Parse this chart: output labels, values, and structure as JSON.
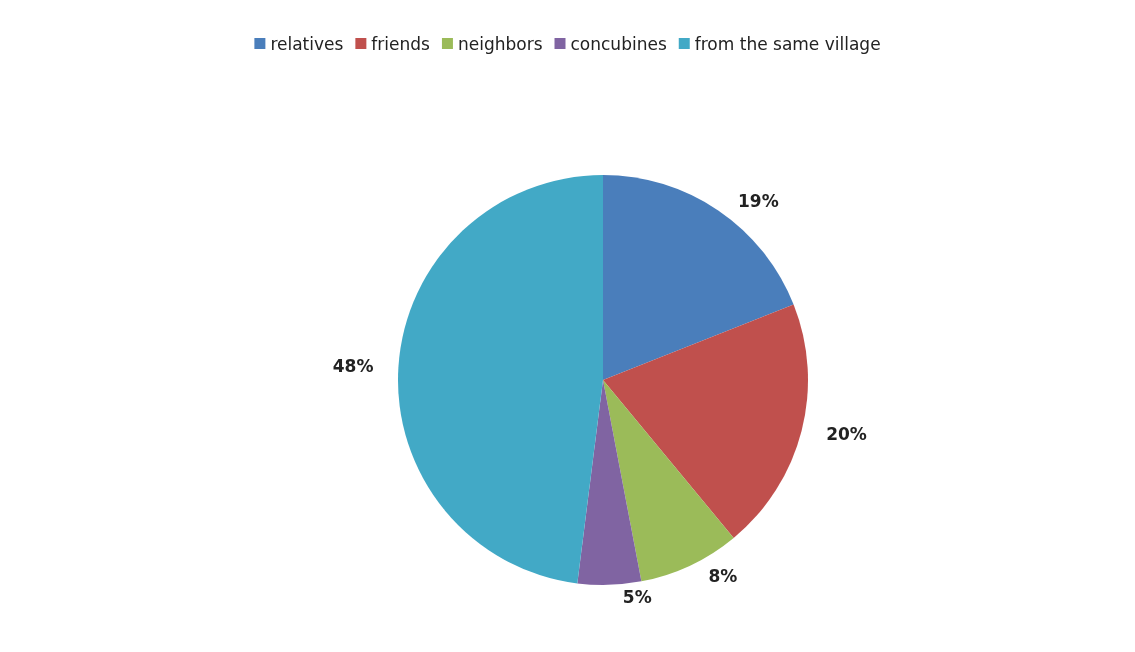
{
  "chart_data": {
    "type": "pie",
    "categories": [
      "relatives",
      "friends",
      "neighbors",
      "concubines",
      "from the same village"
    ],
    "values": [
      19,
      20,
      8,
      5,
      48
    ],
    "colors": [
      "#4a7ebb",
      "#c0504d",
      "#9bbb59",
      "#8064a2",
      "#42a9c6"
    ],
    "value_labels": [
      "19%",
      "20%",
      "8%",
      "5%",
      "48%"
    ],
    "legend": "top"
  }
}
